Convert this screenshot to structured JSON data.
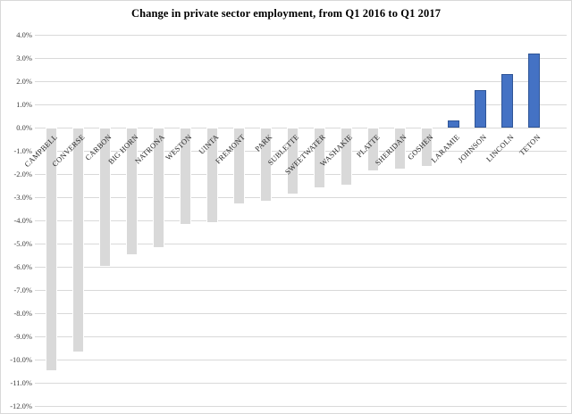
{
  "chart_data": {
    "type": "bar",
    "title": "Change in private sector employment, from Q1 2016 to Q1 2017",
    "categories": [
      "CAMPBELL",
      "CONVERSE",
      "CARBON",
      "BIG HORN",
      "NATRONA",
      "WESTON",
      "UINTA",
      "FREMONT",
      "PARK",
      "SUBLETTE",
      "SWEETWATER",
      "WASHAKIE",
      "PLATTE",
      "SHERIDAN",
      "GOSHEN",
      "LARAMIE",
      "JOHNSON",
      "LINCOLN",
      "TETON"
    ],
    "values": [
      -10.5,
      -9.7,
      -6.0,
      -5.5,
      -5.2,
      -4.2,
      -4.1,
      -3.3,
      -3.2,
      -2.9,
      -2.6,
      -2.5,
      -1.9,
      -1.8,
      -1.7,
      0.3,
      1.6,
      2.3,
      3.2
    ],
    "value_unit": "%",
    "xlabel": "",
    "ylabel": "",
    "ylim": [
      -12,
      4
    ],
    "ytick_step": 1,
    "ytick_labels": [
      "4.0%",
      "3.0%",
      "2.0%",
      "1.0%",
      "0.0%",
      "-1.0%",
      "-2.0%",
      "-3.0%",
      "-4.0%",
      "-5.0%",
      "-6.0%",
      "-7.0%",
      "-8.0%",
      "-9.0%",
      "-10.0%",
      "-11.0%",
      "-12.0%"
    ],
    "grid": true,
    "legend": "none",
    "colors": {
      "negative_bar_fill": "#d9d9d9",
      "negative_bar_border": "#ffffff",
      "positive_bar_fill": "#4472c4",
      "positive_bar_border": "#2f5597",
      "gridline": "#d9d9d9",
      "axis_text": "#404040",
      "category_text": "#262626",
      "title_text": "#000000",
      "background": "#ffffff"
    }
  }
}
